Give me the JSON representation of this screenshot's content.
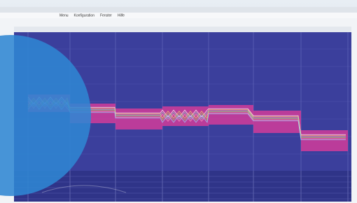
{
  "menu": {
    "items": [
      "Menu",
      "Konfiguration",
      "Fenster",
      "Hilfe"
    ]
  }
}
